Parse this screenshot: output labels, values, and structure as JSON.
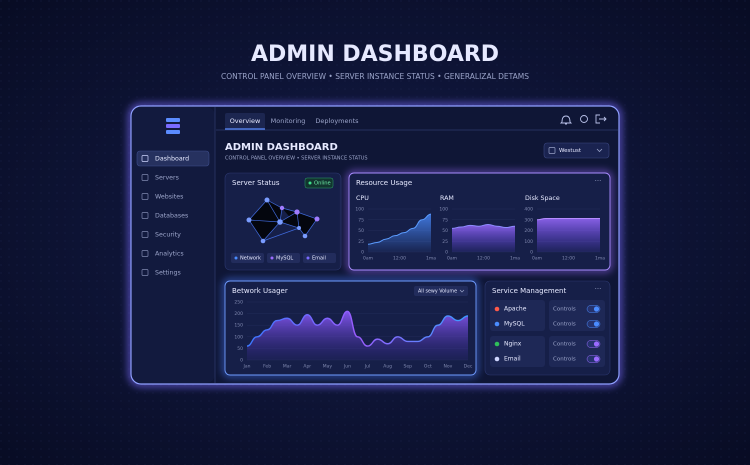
{
  "page": {
    "title": "ADMIN DASHBOARD",
    "subtitle": "CONTROL PANEL OVERVIEW • SERVER INSTANCE STATUS • GENERALIZAL DETAMS"
  },
  "sidebar": {
    "nav": [
      "Dashboard",
      "Servers",
      "Websites",
      "Databases",
      "Security",
      "Analytics",
      "Settings"
    ]
  },
  "tabs": [
    "Overview",
    "Monitoring",
    "Deployments"
  ],
  "header": {
    "title": "ADMIN DASHBOARD",
    "subtitle": "CONTROL PANEL OVERVIEW • SERVER INSTANCE STATUS",
    "region": "Westust"
  },
  "server_status": {
    "title": "Server Status",
    "badge": "Online",
    "legend": [
      "Network",
      "MySQL",
      "Email"
    ]
  },
  "resource_usage": {
    "title": "Resource Usage",
    "charts": [
      {
        "title": "CPU",
        "ylim": [
          0,
          100
        ],
        "yticks": [
          0,
          25,
          50,
          75,
          100
        ],
        "x_labels": [
          "0am",
          "12:00",
          "1ma"
        ],
        "values": [
          18,
          22,
          30,
          38,
          45,
          55,
          75,
          88
        ]
      },
      {
        "title": "RAM",
        "ylim": [
          0,
          100
        ],
        "yticks": [
          0,
          25,
          50,
          75,
          100
        ],
        "x_labels": [
          "0am",
          "12:00",
          "1ma"
        ],
        "values": [
          55,
          58,
          62,
          60,
          64,
          60,
          57,
          60
        ]
      },
      {
        "title": "Disk Space",
        "ylim": [
          0,
          400
        ],
        "yticks": [
          0,
          100,
          200,
          300,
          400
        ],
        "x_labels": [
          "0am",
          "12:00",
          "1ma"
        ],
        "values": [
          300,
          312,
          312,
          312,
          312,
          312,
          312,
          312
        ]
      }
    ]
  },
  "network_usage": {
    "title": "Betwork Usager",
    "filter": "All sewy Volume",
    "ylim": [
      0,
      250
    ],
    "yticks": [
      0,
      50,
      100,
      150,
      200,
      250
    ],
    "x_labels": [
      "Jan",
      "Feb",
      "Mar",
      "Apr",
      "May",
      "Jun",
      "Jul",
      "Aug",
      "Sep",
      "Oct",
      "Nov",
      "Dec"
    ],
    "values": [
      60,
      100,
      130,
      170,
      180,
      150,
      195,
      150,
      180,
      150,
      210,
      100,
      60,
      90,
      70,
      100,
      80,
      80,
      100,
      150,
      190,
      170,
      190
    ]
  },
  "service_management": {
    "title": "Service Management",
    "services": [
      {
        "name": "Apache",
        "control": "Controls"
      },
      {
        "name": "MySQL",
        "control": "Controls"
      },
      {
        "name": "Nginx",
        "control": "Controls"
      },
      {
        "name": "Email",
        "control": "Controls"
      }
    ]
  }
}
